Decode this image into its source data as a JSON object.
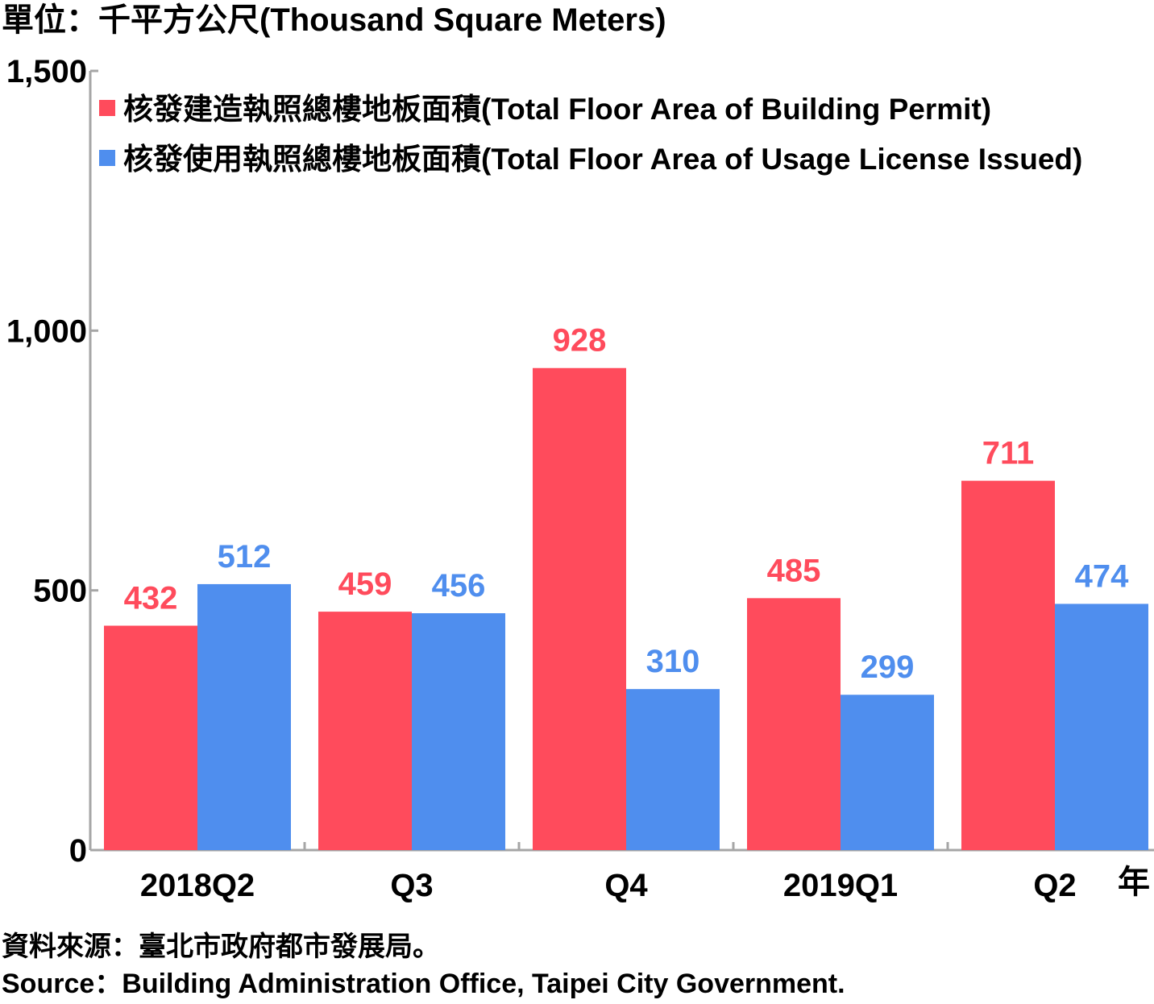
{
  "chart_data": {
    "type": "bar",
    "unit_label": "單位：千平方公尺(Thousand Square Meters)",
    "categories": [
      "2018Q2",
      "Q3",
      "Q4",
      "2019Q1",
      "Q2"
    ],
    "x_suffix": "年",
    "series": [
      {
        "name": "核發建造執照總樓地板面積(Total Floor Area of Building Permit)",
        "color": "#ff4b5c",
        "values": [
          432,
          459,
          928,
          485,
          711
        ]
      },
      {
        "name": "核發使用執照總樓地板面積(Total Floor Area of Usage License Issued)",
        "color": "#4f8eee",
        "values": [
          512,
          456,
          310,
          299,
          474
        ]
      }
    ],
    "ylim": [
      0,
      1500
    ],
    "yticks": [
      0,
      500,
      1000,
      1500
    ],
    "ytick_labels": [
      "0",
      "500",
      "1,000",
      "1,500"
    ],
    "grid": false,
    "legend_position": "top-left"
  },
  "source": {
    "zh": "資料來源：臺北市政府都市發展局。",
    "en": "Source：Building Administration Office, Taipei City Government."
  }
}
